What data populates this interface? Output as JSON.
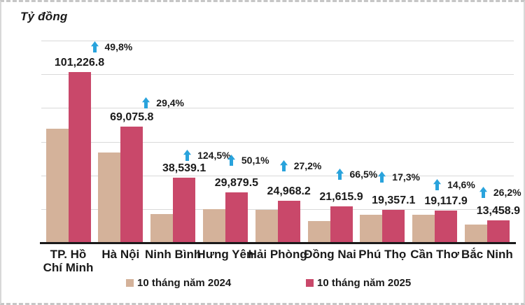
{
  "title": "Tỷ đồng",
  "legend": {
    "items": [
      {
        "label": "10 tháng năm 2024",
        "color": "#D4B29A"
      },
      {
        "label": "10 tháng năm 2025",
        "color": "#C9486A"
      }
    ],
    "position": "bottom"
  },
  "colors": {
    "series_2024": "#D4B29A",
    "series_2025": "#C9486A",
    "arrow_blue": "#29A3DC",
    "gridline": "#D9D9D9",
    "axis_line": "#1A1A1A",
    "text": "#1A1A1A",
    "background": "#FFFFFF"
  },
  "chart_data": {
    "type": "bar",
    "title": "Tỷ đồng",
    "ylabel": "Tỷ đồng",
    "xlabel": "",
    "categories": [
      "TP. Hồ Chí Minh",
      "Hà Nội",
      "Ninh Bình",
      "Hưng Yên",
      "Hải Phòng",
      "Đồng Nai",
      "Phú Thọ",
      "Cần Thơ",
      "Bắc Ninh"
    ],
    "category_display_lines": [
      [
        "TP. Hồ",
        "Chí Minh"
      ],
      [
        "Hà Nội"
      ],
      [
        "Ninh Bình"
      ],
      [
        "Hưng Yên"
      ],
      [
        "Hải Phòng"
      ],
      [
        "Đồng Nai"
      ],
      [
        "Phú Thọ"
      ],
      [
        "Cần Thơ"
      ],
      [
        "Bắc Ninh"
      ]
    ],
    "series": [
      {
        "name": "10 tháng năm 2024",
        "color": "#D4B29A",
        "values": [
          67574.6,
          53382.4,
          17166.6,
          19906.4,
          19629.1,
          12982.5,
          16502.2,
          16682.3,
          10664.7
        ]
      },
      {
        "name": "10 tháng năm 2025",
        "color": "#C9486A",
        "values": [
          101226.8,
          69075.8,
          38539.1,
          29879.5,
          24968.2,
          21615.9,
          19357.1,
          19117.9,
          13458.9
        ]
      }
    ],
    "value_labels_2025": [
      "101,226.8",
      "69,075.8",
      "38,539.1",
      "29,879.5",
      "24,968.2",
      "21,615.9",
      "19,357.1",
      "19,117.9",
      "13,458.9"
    ],
    "pct_change_labels": [
      "49,8%",
      "29,4%",
      "124,5%",
      "50,1%",
      "27,2%",
      "66,5%",
      "17,3%",
      "14,6%",
      "26,2%"
    ],
    "ylim": [
      0,
      120000
    ],
    "gridline_step": 20000,
    "grid": true,
    "y_tick_labels_visible": false,
    "legend_position": "bottom"
  }
}
